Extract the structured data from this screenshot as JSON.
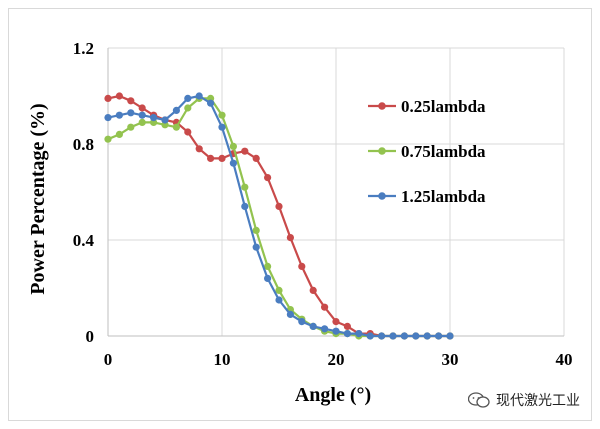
{
  "chart_data": {
    "type": "line",
    "xlabel": "Angle (°)",
    "ylabel": "Power Percentage (%)",
    "xlim": [
      0,
      40
    ],
    "ylim": [
      0,
      1.2
    ],
    "xticks": [
      "0",
      "10",
      "20",
      "30",
      "40"
    ],
    "yticks": [
      "0",
      "0.4",
      "0.8",
      "1.2"
    ],
    "grid": true,
    "legend_position": "right",
    "series": [
      {
        "name": "0.25lambda",
        "color": "#c94a4a",
        "x": [
          0,
          1,
          2,
          3,
          4,
          5,
          6,
          7,
          8,
          9,
          10,
          11,
          12,
          13,
          14,
          15,
          16,
          17,
          18,
          19,
          20,
          21,
          22,
          23,
          24,
          25,
          26,
          27,
          28,
          29,
          30
        ],
        "y": [
          0.99,
          1.0,
          0.98,
          0.95,
          0.92,
          0.9,
          0.89,
          0.85,
          0.78,
          0.74,
          0.74,
          0.76,
          0.77,
          0.74,
          0.66,
          0.54,
          0.41,
          0.29,
          0.19,
          0.12,
          0.06,
          0.04,
          0.01,
          0.01,
          0.0,
          0.0,
          0.0,
          0.0,
          0.0,
          0.0,
          0.0
        ]
      },
      {
        "name": "0.75lambda",
        "color": "#93c34f",
        "x": [
          0,
          1,
          2,
          3,
          4,
          5,
          6,
          7,
          8,
          9,
          10,
          11,
          12,
          13,
          14,
          15,
          16,
          17,
          18,
          19,
          20,
          21,
          22,
          23,
          24,
          25,
          26,
          27,
          28,
          29,
          30
        ],
        "y": [
          0.82,
          0.84,
          0.87,
          0.89,
          0.89,
          0.88,
          0.87,
          0.95,
          0.99,
          0.99,
          0.92,
          0.79,
          0.62,
          0.44,
          0.29,
          0.19,
          0.11,
          0.07,
          0.04,
          0.02,
          0.01,
          0.01,
          0.0,
          0.0,
          0.0,
          0.0,
          0.0,
          0.0,
          0.0,
          0.0,
          0.0
        ]
      },
      {
        "name": "1.25lambda",
        "color": "#4a7dc0",
        "x": [
          0,
          1,
          2,
          3,
          4,
          5,
          6,
          7,
          8,
          9,
          10,
          11,
          12,
          13,
          14,
          15,
          16,
          17,
          18,
          19,
          20,
          21,
          22,
          23,
          24,
          25,
          26,
          27,
          28,
          29,
          30
        ],
        "y": [
          0.91,
          0.92,
          0.93,
          0.92,
          0.91,
          0.9,
          0.94,
          0.99,
          1.0,
          0.97,
          0.87,
          0.72,
          0.54,
          0.37,
          0.24,
          0.15,
          0.09,
          0.06,
          0.04,
          0.03,
          0.02,
          0.01,
          0.01,
          0.0,
          0.0,
          0.0,
          0.0,
          0.0,
          0.0,
          0.0,
          0.0
        ]
      }
    ]
  },
  "watermark": {
    "text": "现代激光工业",
    "icon": "wechat-icon"
  }
}
